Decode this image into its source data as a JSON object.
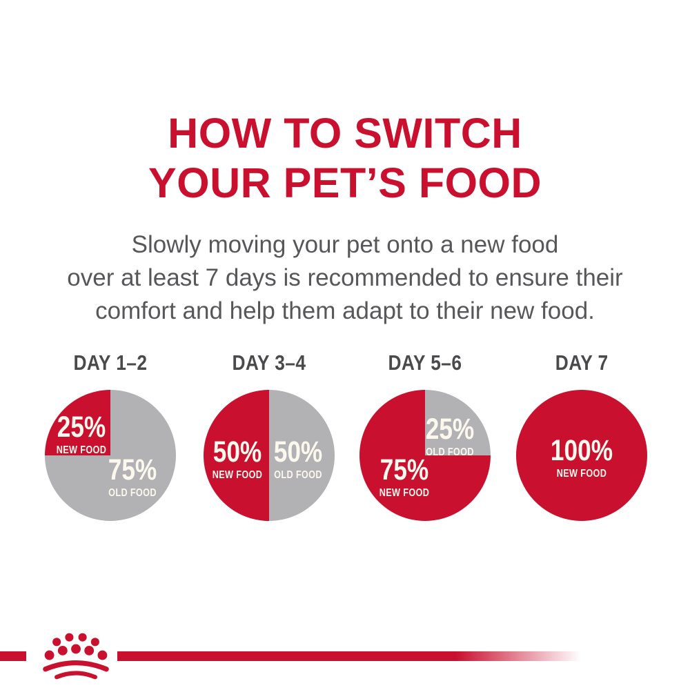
{
  "header": {
    "title_line1": "HOW TO SWITCH",
    "title_line2": "YOUR PET’S FOOD",
    "subtitle_lines": [
      "Slowly moving your pet onto a new food",
      "over at least 7 days is recommended to ensure their",
      "comfort and help them adapt to their new food."
    ]
  },
  "colors": {
    "red": "#C9102E",
    "gray": "#B2B2B5",
    "subtitle_gray": "#57575A",
    "day_label_gray": "#4A4A4C",
    "slice_text": "#FCF8EE"
  },
  "chart_data": [
    {
      "type": "pie",
      "title": "DAY 1–2",
      "legend_position": "inside",
      "slices": [
        {
          "label": "NEW FOOD",
          "value": 25,
          "unit": "%",
          "color_key": "red",
          "start_deg": 270,
          "end_deg": 360,
          "label_pos": {
            "x": "28%",
            "y": "34%"
          }
        },
        {
          "label": "OLD FOOD",
          "value": 75,
          "unit": "%",
          "color_key": "gray",
          "start_deg": 0,
          "end_deg": 270,
          "label_pos": {
            "x": "67%",
            "y": "67%"
          }
        }
      ]
    },
    {
      "type": "pie",
      "title": "DAY 3–4",
      "legend_position": "inside",
      "slices": [
        {
          "label": "NEW FOOD",
          "value": 50,
          "unit": "%",
          "color_key": "red",
          "start_deg": 180,
          "end_deg": 360,
          "label_pos": {
            "x": "26%",
            "y": "53%"
          }
        },
        {
          "label": "OLD FOOD",
          "value": 50,
          "unit": "%",
          "color_key": "gray",
          "start_deg": 0,
          "end_deg": 180,
          "label_pos": {
            "x": "72%",
            "y": "53%"
          }
        }
      ]
    },
    {
      "type": "pie",
      "title": "DAY 5–6",
      "legend_position": "inside",
      "slices": [
        {
          "label": "NEW FOOD",
          "value": 75,
          "unit": "%",
          "color_key": "red",
          "start_deg": 90,
          "end_deg": 360,
          "label_pos": {
            "x": "34%",
            "y": "67%"
          }
        },
        {
          "label": "OLD FOOD",
          "value": 25,
          "unit": "%",
          "color_key": "gray",
          "start_deg": 0,
          "end_deg": 90,
          "label_pos": {
            "x": "69%",
            "y": "36%"
          }
        }
      ]
    },
    {
      "type": "pie",
      "title": "DAY 7",
      "legend_position": "inside",
      "slices": [
        {
          "label": "NEW FOOD",
          "value": 100,
          "unit": "%",
          "color_key": "red",
          "start_deg": 0,
          "end_deg": 360,
          "label_pos": {
            "x": "50%",
            "y": "52%"
          }
        }
      ]
    }
  ],
  "footer": {
    "brand_icon": "royal-canin-crown-icon"
  }
}
